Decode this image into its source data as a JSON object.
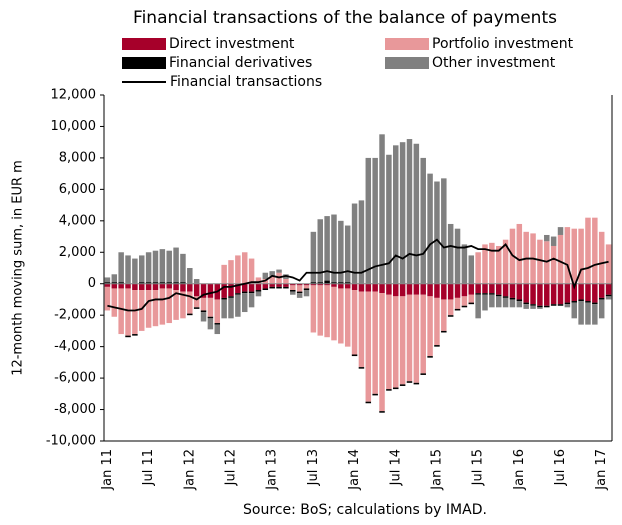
{
  "chart_data": {
    "type": "bar",
    "stacked": true,
    "title": "Financial transactions of the balance of payments",
    "y_label": "12-month moving sum, in EUR m",
    "source": "Source: BoS; calculations by IMAD.",
    "categories": [
      "Jan 11",
      null,
      null,
      null,
      null,
      null,
      "Jul 11",
      null,
      null,
      null,
      null,
      null,
      "Jan 12",
      null,
      null,
      null,
      null,
      null,
      "Jul 12",
      null,
      null,
      null,
      null,
      null,
      "Jan 13",
      null,
      null,
      null,
      null,
      null,
      "Jul 13",
      null,
      null,
      null,
      null,
      null,
      "Jan 14",
      null,
      null,
      null,
      null,
      null,
      "Jul 14",
      null,
      null,
      null,
      null,
      null,
      "Jan 15",
      null,
      null,
      null,
      null,
      null,
      "Jul 15",
      null,
      null,
      null,
      null,
      null,
      "Jan 16",
      null,
      null,
      null,
      null,
      null,
      "Jul 16",
      null,
      null,
      null,
      null,
      null,
      "Jan 17",
      null
    ],
    "series": [
      {
        "name": "Direct investment",
        "color": "#a6002a",
        "values": [
          -200,
          -300,
          -300,
          -300,
          -400,
          -400,
          -400,
          -400,
          -300,
          -300,
          -400,
          -500,
          -500,
          -800,
          -900,
          -900,
          -1000,
          -900,
          -800,
          -600,
          -500,
          -500,
          -400,
          -300,
          -200,
          -200,
          -200,
          -100,
          -100,
          -100,
          -100,
          -100,
          -100,
          -200,
          -300,
          -300,
          -400,
          -500,
          -500,
          -500,
          -600,
          -700,
          -800,
          -800,
          -700,
          -700,
          -700,
          -800,
          -900,
          -1000,
          -1000,
          -900,
          -800,
          -700,
          -600,
          -600,
          -600,
          -700,
          -800,
          -900,
          -1000,
          -1200,
          -1300,
          -1400,
          -1400,
          -1300,
          -1300,
          -1200,
          -1100,
          -1000,
          -1100,
          -1200,
          -900,
          -700
        ]
      },
      {
        "name": "Portfolio investment",
        "color": "#e8989a",
        "values": [
          -1500,
          -1800,
          -2900,
          -3000,
          -2800,
          -2600,
          -2400,
          -2300,
          -2300,
          -2200,
          -1900,
          -1700,
          -1400,
          -700,
          -800,
          -1200,
          -1500,
          1200,
          1500,
          1800,
          2000,
          1600,
          400,
          300,
          500,
          700,
          300,
          -300,
          -400,
          -200,
          -3000,
          -3200,
          -3300,
          -3400,
          -3500,
          -3700,
          -4100,
          -4800,
          -7000,
          -6500,
          -7500,
          -6000,
          -5800,
          -5600,
          -5500,
          -5600,
          -5000,
          -3800,
          -3000,
          -2000,
          -1000,
          -700,
          -600,
          -500,
          2000,
          2500,
          2600,
          2400,
          2800,
          3500,
          3800,
          3300,
          3200,
          2800,
          2700,
          2400,
          3100,
          3600,
          3500,
          3500,
          4200,
          4200,
          3300,
          2500
        ]
      },
      {
        "name": "Financial derivatives",
        "color": "#000000",
        "values": [
          100,
          100,
          100,
          -100,
          -100,
          100,
          100,
          100,
          100,
          100,
          100,
          100,
          -100,
          -100,
          -100,
          -100,
          -100,
          -100,
          -100,
          -100,
          -100,
          -100,
          -100,
          -100,
          -100,
          -100,
          -100,
          -100,
          -100,
          -100,
          100,
          100,
          200,
          100,
          100,
          100,
          -100,
          -100,
          -100,
          -100,
          -100,
          -100,
          -100,
          -100,
          -100,
          -100,
          -100,
          -100,
          -100,
          -100,
          -100,
          -100,
          -100,
          -100,
          -100,
          -100,
          -100,
          -100,
          -100,
          -100,
          -100,
          -100,
          -100,
          -100,
          -100,
          -100,
          -100,
          -100,
          -100,
          -100,
          -100,
          -100,
          -100,
          -100
        ]
      },
      {
        "name": "Other investment",
        "color": "#808080",
        "values": [
          300,
          500,
          1900,
          1800,
          1600,
          1700,
          1900,
          2000,
          2100,
          2000,
          2200,
          1800,
          1000,
          300,
          -600,
          -700,
          -600,
          -1200,
          -1300,
          -1400,
          -1200,
          -900,
          -300,
          400,
          300,
          200,
          300,
          -200,
          -300,
          -400,
          3200,
          4000,
          4100,
          4300,
          3900,
          3600,
          5100,
          5300,
          8000,
          8000,
          9500,
          8200,
          8800,
          9000,
          9200,
          8900,
          8000,
          7000,
          6500,
          6700,
          3800,
          3500,
          2500,
          1800,
          -1500,
          -1000,
          -800,
          -700,
          -600,
          -500,
          -400,
          -300,
          -200,
          -100,
          400,
          600,
          500,
          -200,
          -1000,
          -1500,
          -1400,
          -1300,
          -1200,
          -200
        ]
      },
      {
        "name": "Financial transactions",
        "color": "#000000",
        "line": true,
        "values": [
          -1400,
          -1500,
          -1600,
          -1700,
          -1700,
          -1600,
          -1100,
          -1000,
          -1000,
          -900,
          -600,
          -700,
          -800,
          -1000,
          -700,
          -600,
          -500,
          -200,
          -200,
          -100,
          0,
          100,
          100,
          200,
          500,
          400,
          500,
          400,
          200,
          700,
          700,
          700,
          800,
          700,
          700,
          800,
          700,
          700,
          900,
          1100,
          1200,
          1300,
          1800,
          1600,
          1900,
          1800,
          1900,
          2500,
          2800,
          2300,
          2400,
          2300,
          2300,
          2400,
          2200,
          2200,
          2100,
          2100,
          2500,
          1800,
          1500,
          1600,
          1600,
          1500,
          1400,
          1600,
          1400,
          1200,
          -200,
          900,
          1000,
          1200,
          1300,
          1400
        ]
      }
    ],
    "ylim": [
      -10000,
      12000
    ],
    "yticks": [
      {
        "value": -10000,
        "label": "-10,000"
      },
      {
        "value": -8000,
        "label": "-8,000"
      },
      {
        "value": -6000,
        "label": "-6,000"
      },
      {
        "value": -4000,
        "label": "-4,000"
      },
      {
        "value": -2000,
        "label": "-2,000"
      },
      0,
      {
        "value": 2000,
        "label": "2,000"
      },
      {
        "value": 4000,
        "label": "4,000"
      },
      {
        "value": 6000,
        "label": "6,000"
      },
      {
        "value": 8000,
        "label": "8,000"
      },
      {
        "value": 10000,
        "label": "10,000"
      },
      {
        "value": 12000,
        "label": "12,000"
      }
    ],
    "grid": false
  }
}
